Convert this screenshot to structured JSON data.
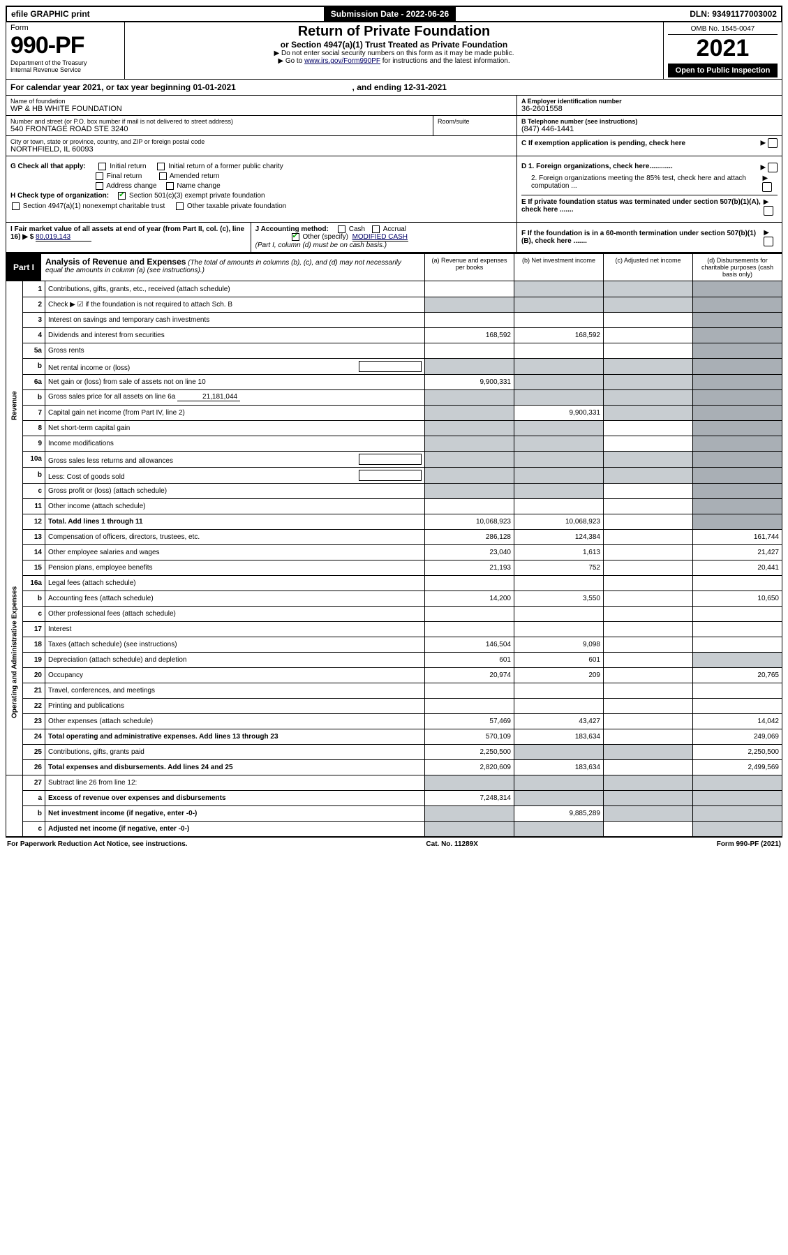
{
  "colors": {
    "black": "#000000",
    "link": "#000066",
    "shade": "#c8cdd1",
    "shade_dark": "#a9afb5",
    "check_green": "#00aa00"
  },
  "top_bar": {
    "efile": "efile GRAPHIC print",
    "submission_label": "Submission Date - 2022-06-26",
    "dln": "DLN: 93491177003002"
  },
  "header": {
    "form_word": "Form",
    "form_number": "990-PF",
    "dept1": "Department of the Treasury",
    "dept2": "Internal Revenue Service",
    "title": "Return of Private Foundation",
    "subtitle": "or Section 4947(a)(1) Trust Treated as Private Foundation",
    "instr1": "▶ Do not enter social security numbers on this form as it may be made public.",
    "instr2_prefix": "▶ Go to ",
    "instr2_link": "www.irs.gov/Form990PF",
    "instr2_suffix": " for instructions and the latest information.",
    "omb": "OMB No. 1545-0047",
    "year": "2021",
    "open": "Open to Public Inspection"
  },
  "calendar": {
    "text_a": "For calendar year 2021, or tax year beginning ",
    "begin": "01-01-2021",
    "text_b": " , and ending ",
    "end": "12-31-2021"
  },
  "id": {
    "name_label": "Name of foundation",
    "name": "WP & HB WHITE FOUNDATION",
    "addr_label": "Number and street (or P.O. box number if mail is not delivered to street address)",
    "addr": "540 FRONTAGE ROAD STE 3240",
    "room_label": "Room/suite",
    "city_label": "City or town, state or province, country, and ZIP or foreign postal code",
    "city": "NORTHFIELD, IL  60093",
    "a_label": "A Employer identification number",
    "a_val": "36-2601558",
    "b_label": "B Telephone number (see instructions)",
    "b_val": "(847) 446-1441",
    "c_label": "C If exemption application is pending, check here"
  },
  "g_block": {
    "g_label": "G Check all that apply:",
    "opts": [
      "Initial return",
      "Initial return of a former public charity",
      "Final return",
      "Amended return",
      "Address change",
      "Name change"
    ],
    "h_label": "H Check type of organization:",
    "h_opt1": "Section 501(c)(3) exempt private foundation",
    "h_opt2": "Section 4947(a)(1) nonexempt charitable trust",
    "h_opt3": "Other taxable private foundation",
    "d1": "D 1. Foreign organizations, check here............",
    "d2": "2. Foreign organizations meeting the 85% test, check here and attach computation ...",
    "e": "E  If private foundation status was terminated under section 507(b)(1)(A), check here ......."
  },
  "ij_block": {
    "i_label": "I Fair market value of all assets at end of year (from Part II, col. (c), line 16) ▶ $",
    "i_val": "80,019,143",
    "j_label": "J Accounting method:",
    "j_cash": "Cash",
    "j_accrual": "Accrual",
    "j_other": "Other (specify)",
    "j_other_val": "MODIFIED CASH",
    "j_note": "(Part I, column (d) must be on cash basis.)",
    "f": "F  If the foundation is in a 60-month termination under section 507(b)(1)(B), check here ......."
  },
  "part1": {
    "label": "Part I",
    "title": "Analysis of Revenue and Expenses",
    "title_note": " (The total of amounts in columns (b), (c), and (d) may not necessarily equal the amounts in column (a) (see instructions).)",
    "col_a": "(a) Revenue and expenses per books",
    "col_b": "(b) Net investment income",
    "col_c": "(c) Adjusted net income",
    "col_d": "(d) Disbursements for charitable purposes (cash basis only)"
  },
  "vlabels": {
    "revenue": "Revenue",
    "expenses": "Operating and Administrative Expenses"
  },
  "rows": [
    {
      "n": "1",
      "d": "Contributions, gifts, grants, etc., received (attach schedule)",
      "a": "",
      "b": "shade",
      "c": "shade",
      "dd": "shade2"
    },
    {
      "n": "2",
      "d": "Check ▶ ☑ if the foundation is not required to attach Sch. B",
      "a": "shade",
      "b": "shade",
      "c": "shade",
      "dd": "shade2"
    },
    {
      "n": "3",
      "d": "Interest on savings and temporary cash investments",
      "a": "",
      "b": "",
      "c": "",
      "dd": "shade2"
    },
    {
      "n": "4",
      "d": "Dividends and interest from securities",
      "a": "168,592",
      "b": "168,592",
      "c": "",
      "dd": "shade2"
    },
    {
      "n": "5a",
      "d": "Gross rents",
      "a": "",
      "b": "",
      "c": "",
      "dd": "shade2"
    },
    {
      "n": "b",
      "d": "Net rental income or (loss)",
      "a": "shade",
      "b": "shade",
      "c": "shade",
      "dd": "shade2",
      "box": true
    },
    {
      "n": "6a",
      "d": "Net gain or (loss) from sale of assets not on line 10",
      "a": "9,900,331",
      "b": "shade",
      "c": "shade",
      "dd": "shade2"
    },
    {
      "n": "b",
      "d": "Gross sales price for all assets on line 6a",
      "a": "shade",
      "b": "shade",
      "c": "shade",
      "dd": "shade2",
      "inset": "21,181,044"
    },
    {
      "n": "7",
      "d": "Capital gain net income (from Part IV, line 2)",
      "a": "shade",
      "b": "9,900,331",
      "c": "shade",
      "dd": "shade2"
    },
    {
      "n": "8",
      "d": "Net short-term capital gain",
      "a": "shade",
      "b": "shade",
      "c": "",
      "dd": "shade2"
    },
    {
      "n": "9",
      "d": "Income modifications",
      "a": "shade",
      "b": "shade",
      "c": "",
      "dd": "shade2"
    },
    {
      "n": "10a",
      "d": "Gross sales less returns and allowances",
      "a": "shade",
      "b": "shade",
      "c": "shade",
      "dd": "shade2",
      "box": true
    },
    {
      "n": "b",
      "d": "Less: Cost of goods sold",
      "a": "shade",
      "b": "shade",
      "c": "shade",
      "dd": "shade2",
      "box": true
    },
    {
      "n": "c",
      "d": "Gross profit or (loss) (attach schedule)",
      "a": "shade",
      "b": "shade",
      "c": "",
      "dd": "shade2"
    },
    {
      "n": "11",
      "d": "Other income (attach schedule)",
      "a": "",
      "b": "",
      "c": "",
      "dd": "shade2"
    },
    {
      "n": "12",
      "d": "Total. Add lines 1 through 11",
      "a": "10,068,923",
      "b": "10,068,923",
      "c": "",
      "dd": "shade2",
      "bold": true
    }
  ],
  "exp_rows": [
    {
      "n": "13",
      "d": "Compensation of officers, directors, trustees, etc.",
      "a": "286,128",
      "b": "124,384",
      "c": "",
      "dd": "161,744"
    },
    {
      "n": "14",
      "d": "Other employee salaries and wages",
      "a": "23,040",
      "b": "1,613",
      "c": "",
      "dd": "21,427"
    },
    {
      "n": "15",
      "d": "Pension plans, employee benefits",
      "a": "21,193",
      "b": "752",
      "c": "",
      "dd": "20,441"
    },
    {
      "n": "16a",
      "d": "Legal fees (attach schedule)",
      "a": "",
      "b": "",
      "c": "",
      "dd": ""
    },
    {
      "n": "b",
      "d": "Accounting fees (attach schedule)",
      "a": "14,200",
      "b": "3,550",
      "c": "",
      "dd": "10,650"
    },
    {
      "n": "c",
      "d": "Other professional fees (attach schedule)",
      "a": "",
      "b": "",
      "c": "",
      "dd": ""
    },
    {
      "n": "17",
      "d": "Interest",
      "a": "",
      "b": "",
      "c": "",
      "dd": ""
    },
    {
      "n": "18",
      "d": "Taxes (attach schedule) (see instructions)",
      "a": "146,504",
      "b": "9,098",
      "c": "",
      "dd": ""
    },
    {
      "n": "19",
      "d": "Depreciation (attach schedule) and depletion",
      "a": "601",
      "b": "601",
      "c": "",
      "dd": "shade"
    },
    {
      "n": "20",
      "d": "Occupancy",
      "a": "20,974",
      "b": "209",
      "c": "",
      "dd": "20,765"
    },
    {
      "n": "21",
      "d": "Travel, conferences, and meetings",
      "a": "",
      "b": "",
      "c": "",
      "dd": ""
    },
    {
      "n": "22",
      "d": "Printing and publications",
      "a": "",
      "b": "",
      "c": "",
      "dd": ""
    },
    {
      "n": "23",
      "d": "Other expenses (attach schedule)",
      "a": "57,469",
      "b": "43,427",
      "c": "",
      "dd": "14,042"
    },
    {
      "n": "24",
      "d": "Total operating and administrative expenses. Add lines 13 through 23",
      "a": "570,109",
      "b": "183,634",
      "c": "",
      "dd": "249,069",
      "bold": true
    },
    {
      "n": "25",
      "d": "Contributions, gifts, grants paid",
      "a": "2,250,500",
      "b": "shade",
      "c": "shade",
      "dd": "2,250,500"
    },
    {
      "n": "26",
      "d": "Total expenses and disbursements. Add lines 24 and 25",
      "a": "2,820,609",
      "b": "183,634",
      "c": "",
      "dd": "2,499,569",
      "bold": true
    }
  ],
  "final_rows": [
    {
      "n": "27",
      "d": "Subtract line 26 from line 12:",
      "a": "shade",
      "b": "shade",
      "c": "shade",
      "dd": "shade"
    },
    {
      "n": "a",
      "d": "Excess of revenue over expenses and disbursements",
      "a": "7,248,314",
      "b": "shade",
      "c": "shade",
      "dd": "shade",
      "bold": true
    },
    {
      "n": "b",
      "d": "Net investment income (if negative, enter -0-)",
      "a": "shade",
      "b": "9,885,289",
      "c": "shade",
      "dd": "shade",
      "bold": true
    },
    {
      "n": "c",
      "d": "Adjusted net income (if negative, enter -0-)",
      "a": "shade",
      "b": "shade",
      "c": "",
      "dd": "shade",
      "bold": true
    }
  ],
  "footer": {
    "left": "For Paperwork Reduction Act Notice, see instructions.",
    "mid": "Cat. No. 11289X",
    "right": "Form 990-PF (2021)"
  }
}
